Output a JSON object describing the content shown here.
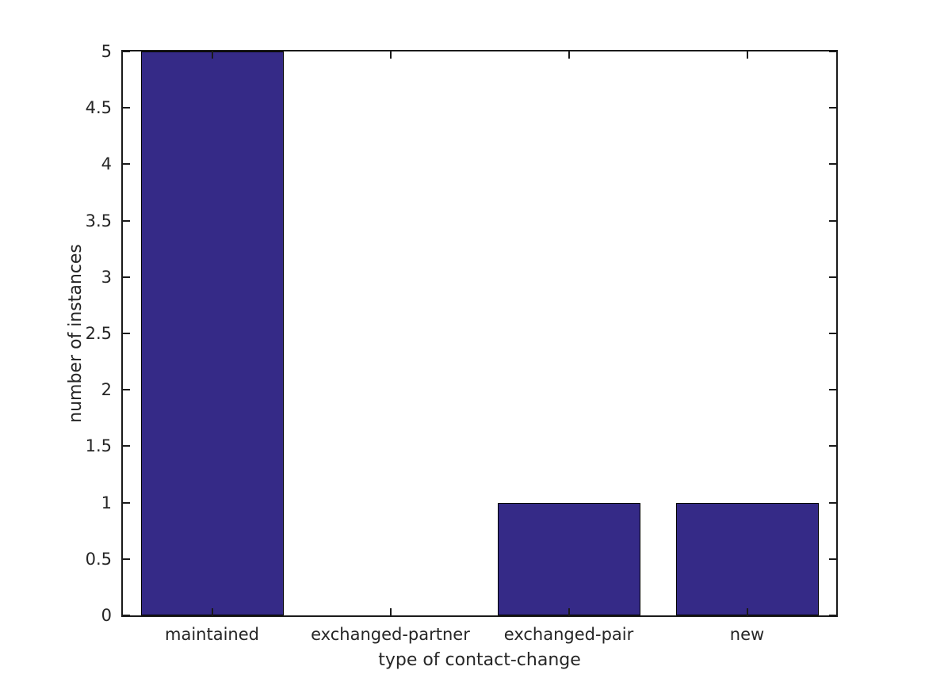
{
  "chart_data": {
    "type": "bar",
    "title": "",
    "categories": [
      "maintained",
      "exchanged-partner",
      "exchanged-pair",
      "new"
    ],
    "values": [
      5,
      0,
      1,
      1
    ],
    "xlabel": "type of contact-change",
    "ylabel": "number of instances",
    "ylim": [
      0,
      5
    ],
    "yticks": [
      0,
      0.5,
      1,
      1.5,
      2,
      2.5,
      3,
      3.5,
      4,
      4.5,
      5
    ],
    "bar_width_fraction": 0.8,
    "grid": false,
    "legend": "none",
    "colors": {
      "bar_fill": "#352A87",
      "bar_edge": "#000000",
      "axis": "#1a1a1a",
      "text": "#262626",
      "background": "#ffffff"
    },
    "tick_style": "inward-all-four-sides"
  }
}
